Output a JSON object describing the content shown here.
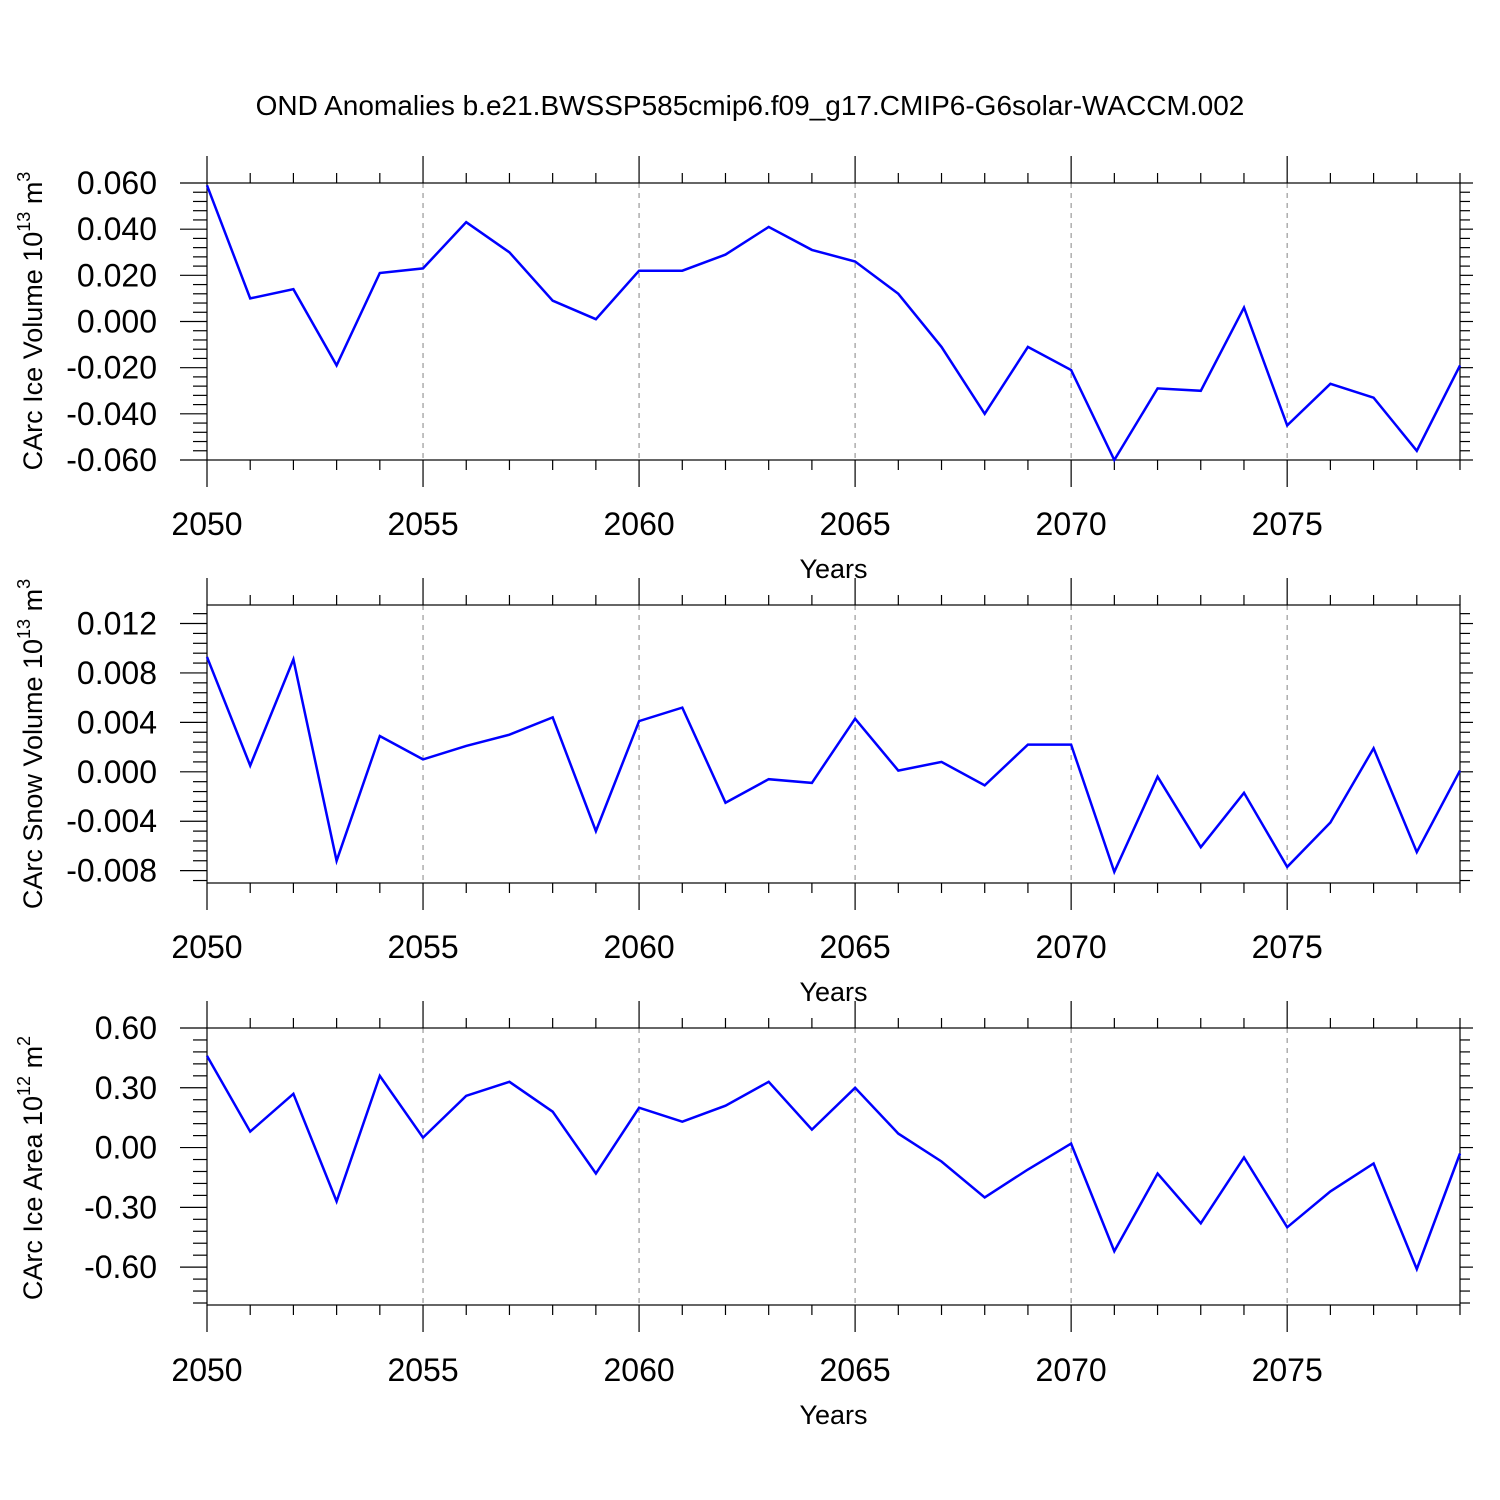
{
  "title": "OND Anomalies b.e21.BWSSP585cmip6.f09_g17.CMIP6-G6solar-WACCM.002",
  "line_color": "#0000ff",
  "chart_data": [
    {
      "type": "line",
      "xlabel": "Years",
      "ylabel_text": "CArc Ice Volume 10",
      "ylabel_exp": "13",
      "ylabel_unit": " m",
      "ylabel_unit_exp": "3",
      "xlim": [
        2050,
        2079
      ],
      "ylim": [
        -0.06,
        0.06
      ],
      "yticks": [
        -0.06,
        -0.04,
        -0.02,
        0.0,
        0.02,
        0.04,
        0.06
      ],
      "ytick_labels": [
        "-0.060",
        "-0.040",
        "-0.020",
        "0.000",
        "0.020",
        "0.040",
        "0.060"
      ],
      "xticks": [
        2050,
        2055,
        2060,
        2065,
        2070,
        2075
      ],
      "xtick_labels": [
        "2050",
        "2055",
        "2060",
        "2065",
        "2070",
        "2075"
      ],
      "x": [
        2050,
        2051,
        2052,
        2053,
        2054,
        2055,
        2056,
        2057,
        2058,
        2059,
        2060,
        2061,
        2062,
        2063,
        2064,
        2065,
        2066,
        2067,
        2068,
        2069,
        2070,
        2071,
        2072,
        2073,
        2074,
        2075,
        2076,
        2077,
        2078,
        2079
      ],
      "values": [
        0.059,
        0.01,
        0.014,
        -0.019,
        0.021,
        0.023,
        0.043,
        0.03,
        0.009,
        0.001,
        0.022,
        0.022,
        0.029,
        0.041,
        0.031,
        0.026,
        0.012,
        -0.011,
        -0.04,
        -0.011,
        -0.021,
        -0.06,
        -0.029,
        -0.03,
        0.006,
        -0.045,
        -0.027,
        -0.033,
        -0.056,
        -0.019
      ]
    },
    {
      "type": "line",
      "xlabel": "Years",
      "ylabel_text": "CArc Snow Volume 10",
      "ylabel_exp": "13",
      "ylabel_unit": " m",
      "ylabel_unit_exp": "3",
      "xlim": [
        2050,
        2079
      ],
      "ylim": [
        -0.009,
        0.0135
      ],
      "yticks": [
        -0.008,
        -0.004,
        0.0,
        0.004,
        0.008,
        0.012
      ],
      "ytick_labels": [
        "-0.008",
        "-0.004",
        "0.000",
        "0.004",
        "0.008",
        "0.012"
      ],
      "xticks": [
        2050,
        2055,
        2060,
        2065,
        2070,
        2075
      ],
      "xtick_labels": [
        "2050",
        "2055",
        "2060",
        "2065",
        "2070",
        "2075"
      ],
      "x": [
        2050,
        2051,
        2052,
        2053,
        2054,
        2055,
        2056,
        2057,
        2058,
        2059,
        2060,
        2061,
        2062,
        2063,
        2064,
        2065,
        2066,
        2067,
        2068,
        2069,
        2070,
        2071,
        2072,
        2073,
        2074,
        2075,
        2076,
        2077,
        2078,
        2079
      ],
      "values": [
        0.0093,
        0.0005,
        0.0091,
        -0.0072,
        0.0029,
        0.001,
        0.0021,
        0.003,
        0.0044,
        -0.0048,
        0.0041,
        0.0052,
        -0.0025,
        -0.0006,
        -0.0009,
        0.0043,
        0.0001,
        0.0008,
        -0.0011,
        0.0022,
        0.0022,
        -0.0081,
        -0.0004,
        -0.0061,
        -0.0017,
        -0.0077,
        -0.0041,
        0.0019,
        -0.0065,
        0.0001
      ]
    },
    {
      "type": "line",
      "xlabel": "Years",
      "ylabel_text": "CArc Ice Area 10",
      "ylabel_exp": "12",
      "ylabel_unit": " m",
      "ylabel_unit_exp": "2",
      "xlim": [
        2050,
        2079
      ],
      "ylim": [
        -0.79,
        0.6
      ],
      "yticks": [
        -0.6,
        -0.3,
        0.0,
        0.3,
        0.6
      ],
      "ytick_labels": [
        "-0.60",
        "-0.30",
        "0.00",
        "0.30",
        "0.60"
      ],
      "xticks": [
        2050,
        2055,
        2060,
        2065,
        2070,
        2075
      ],
      "xtick_labels": [
        "2050",
        "2055",
        "2060",
        "2065",
        "2070",
        "2075"
      ],
      "x": [
        2050,
        2051,
        2052,
        2053,
        2054,
        2055,
        2056,
        2057,
        2058,
        2059,
        2060,
        2061,
        2062,
        2063,
        2064,
        2065,
        2066,
        2067,
        2068,
        2069,
        2070,
        2071,
        2072,
        2073,
        2074,
        2075,
        2076,
        2077,
        2078,
        2079
      ],
      "values": [
        0.46,
        0.08,
        0.27,
        -0.27,
        0.36,
        0.05,
        0.26,
        0.33,
        0.18,
        -0.13,
        0.2,
        0.13,
        0.21,
        0.33,
        0.09,
        0.3,
        0.07,
        -0.07,
        -0.25,
        -0.11,
        0.02,
        -0.52,
        -0.13,
        -0.38,
        -0.05,
        -0.4,
        -0.22,
        -0.08,
        -0.61,
        -0.03
      ]
    }
  ]
}
